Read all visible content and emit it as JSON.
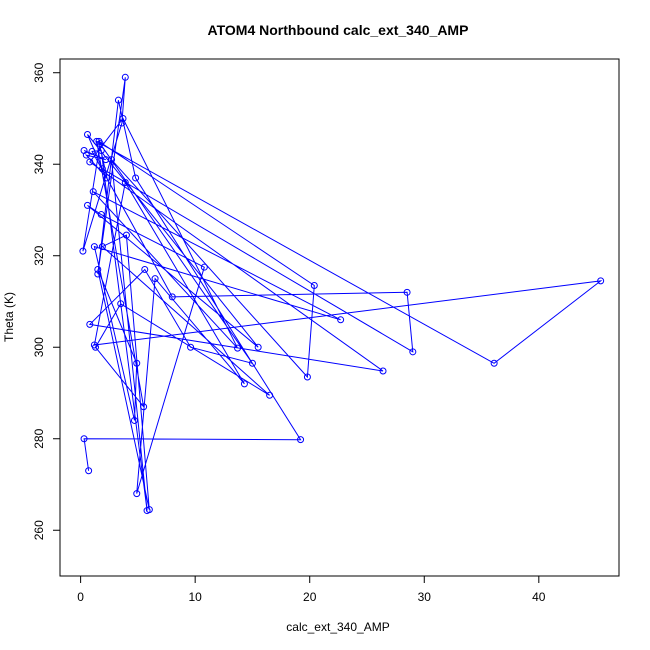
{
  "chart_data": {
    "type": "line",
    "title": "ATOM4 Northbound calc_ext_340_AMP",
    "xlabel": "calc_ext_340_AMP",
    "ylabel": "Theta (K)",
    "xlim": [
      -1.8,
      47.0
    ],
    "ylim": [
      250,
      363
    ],
    "xticks": [
      0,
      10,
      20,
      30,
      40
    ],
    "yticks": [
      260,
      280,
      300,
      320,
      340,
      360
    ],
    "grid": false,
    "series": [
      {
        "color": "#0000ff",
        "marker": "open-circle",
        "x": [
          0.3,
          2.2,
          0.5,
          2.3,
          1.6,
          20.4,
          19.8,
          2.7,
          5.8,
          1.8,
          1.0,
          8.0,
          28.5,
          29.0,
          1.9,
          0.6,
          15.5,
          0.6,
          1.8,
          10.8,
          4.9,
          6.5,
          14.3,
          3.9,
          1.2,
          45.4,
          36.1,
          1.4,
          5.5,
          1.3,
          3.5,
          16.5,
          1.9,
          4.0,
          6.0,
          1.5,
          4.9,
          4.7,
          1.2,
          22.7,
          1.1,
          13.7,
          3.7,
          0.8,
          26.4,
          0.8,
          5.6,
          9.6,
          15.0,
          1.7,
          0.2,
          3.6,
          3.9,
          1.5,
          3.3,
          4.8,
          19.2,
          0.3,
          0.7
        ],
        "y": [
          343,
          341,
          342,
          337,
          345,
          313.5,
          293.5,
          341,
          264.3,
          343,
          342.8,
          311,
          312,
          299,
          339,
          346.5,
          300,
          331,
          329,
          317.5,
          268,
          315,
          292,
          336,
          300.5,
          314.5,
          296.5,
          345,
          287,
          300,
          309.5,
          289.5,
          322,
          324.5,
          264.5,
          317,
          296.5,
          284,
          322,
          306,
          334,
          299.8,
          350,
          340.5,
          294.8,
          305,
          317,
          300,
          296.5,
          344.5,
          321,
          349,
          359,
          316,
          354,
          337,
          279.8,
          280,
          273
        ]
      }
    ]
  }
}
